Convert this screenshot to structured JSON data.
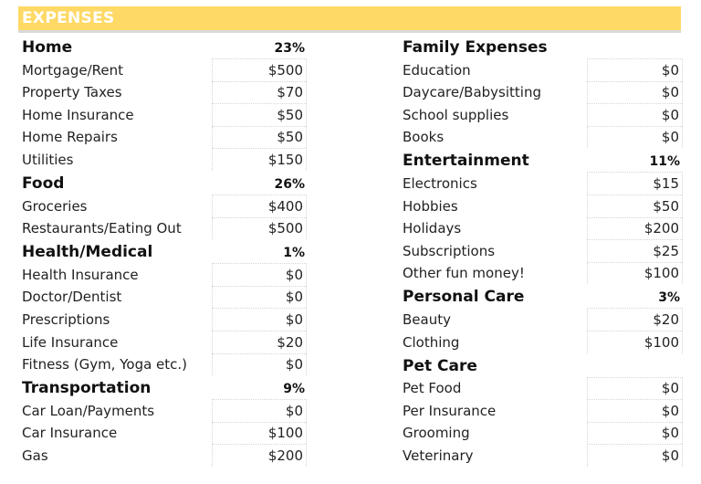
{
  "banner": {
    "title": "EXPENSES",
    "color": "#FFD966"
  },
  "left_column": [
    {
      "type": "category",
      "label": "Home",
      "percent": "23%"
    },
    {
      "type": "item",
      "label": "Mortgage/Rent",
      "value": "$500"
    },
    {
      "type": "item",
      "label": "Property Taxes",
      "value": "$70"
    },
    {
      "type": "item",
      "label": "Home Insurance",
      "value": "$50"
    },
    {
      "type": "item",
      "label": "Home Repairs",
      "value": "$50"
    },
    {
      "type": "item",
      "label": "Utilities",
      "value": "$150"
    },
    {
      "type": "category",
      "label": "Food",
      "percent": "26%"
    },
    {
      "type": "item",
      "label": "Groceries",
      "value": "$400"
    },
    {
      "type": "item",
      "label": "Restaurants/Eating Out",
      "value": "$500"
    },
    {
      "type": "category",
      "label": "Health/Medical",
      "percent": "1%"
    },
    {
      "type": "item",
      "label": "Health Insurance",
      "value": "$0"
    },
    {
      "type": "item",
      "label": "Doctor/Dentist",
      "value": "$0"
    },
    {
      "type": "item",
      "label": "Prescriptions",
      "value": "$0"
    },
    {
      "type": "item",
      "label": "Life Insurance",
      "value": "$20"
    },
    {
      "type": "item",
      "label": "Fitness (Gym, Yoga etc.)",
      "value": "$0"
    },
    {
      "type": "category",
      "label": "Transportation",
      "percent": "9%"
    },
    {
      "type": "item",
      "label": "Car Loan/Payments",
      "value": "$0"
    },
    {
      "type": "item",
      "label": "Car Insurance",
      "value": "$100"
    },
    {
      "type": "item",
      "label": "Gas",
      "value": "$200"
    }
  ],
  "right_column": [
    {
      "type": "category",
      "label": "Family Expenses",
      "percent": ""
    },
    {
      "type": "item",
      "label": "Education",
      "value": "$0"
    },
    {
      "type": "item",
      "label": "Daycare/Babysitting",
      "value": "$0"
    },
    {
      "type": "item",
      "label": "School supplies",
      "value": "$0"
    },
    {
      "type": "item",
      "label": "Books",
      "value": "$0"
    },
    {
      "type": "category",
      "label": "Entertainment",
      "percent": "11%"
    },
    {
      "type": "item",
      "label": "Electronics",
      "value": "$15"
    },
    {
      "type": "item",
      "label": "Hobbies",
      "value": "$50"
    },
    {
      "type": "item",
      "label": "Holidays",
      "value": "$200"
    },
    {
      "type": "item",
      "label": "Subscriptions",
      "value": "$25"
    },
    {
      "type": "item",
      "label": "Other fun money!",
      "value": "$100"
    },
    {
      "type": "category",
      "label": "Personal Care",
      "percent": "3%"
    },
    {
      "type": "item",
      "label": "Beauty",
      "value": "$20"
    },
    {
      "type": "item",
      "label": "Clothing",
      "value": "$100"
    },
    {
      "type": "category",
      "label": "Pet Care",
      "percent": ""
    },
    {
      "type": "item",
      "label": "Pet Food",
      "value": "$0"
    },
    {
      "type": "item",
      "label": "Per Insurance",
      "value": "$0"
    },
    {
      "type": "item",
      "label": "Grooming",
      "value": "$0"
    },
    {
      "type": "item",
      "label": "Veterinary",
      "value": "$0"
    }
  ]
}
